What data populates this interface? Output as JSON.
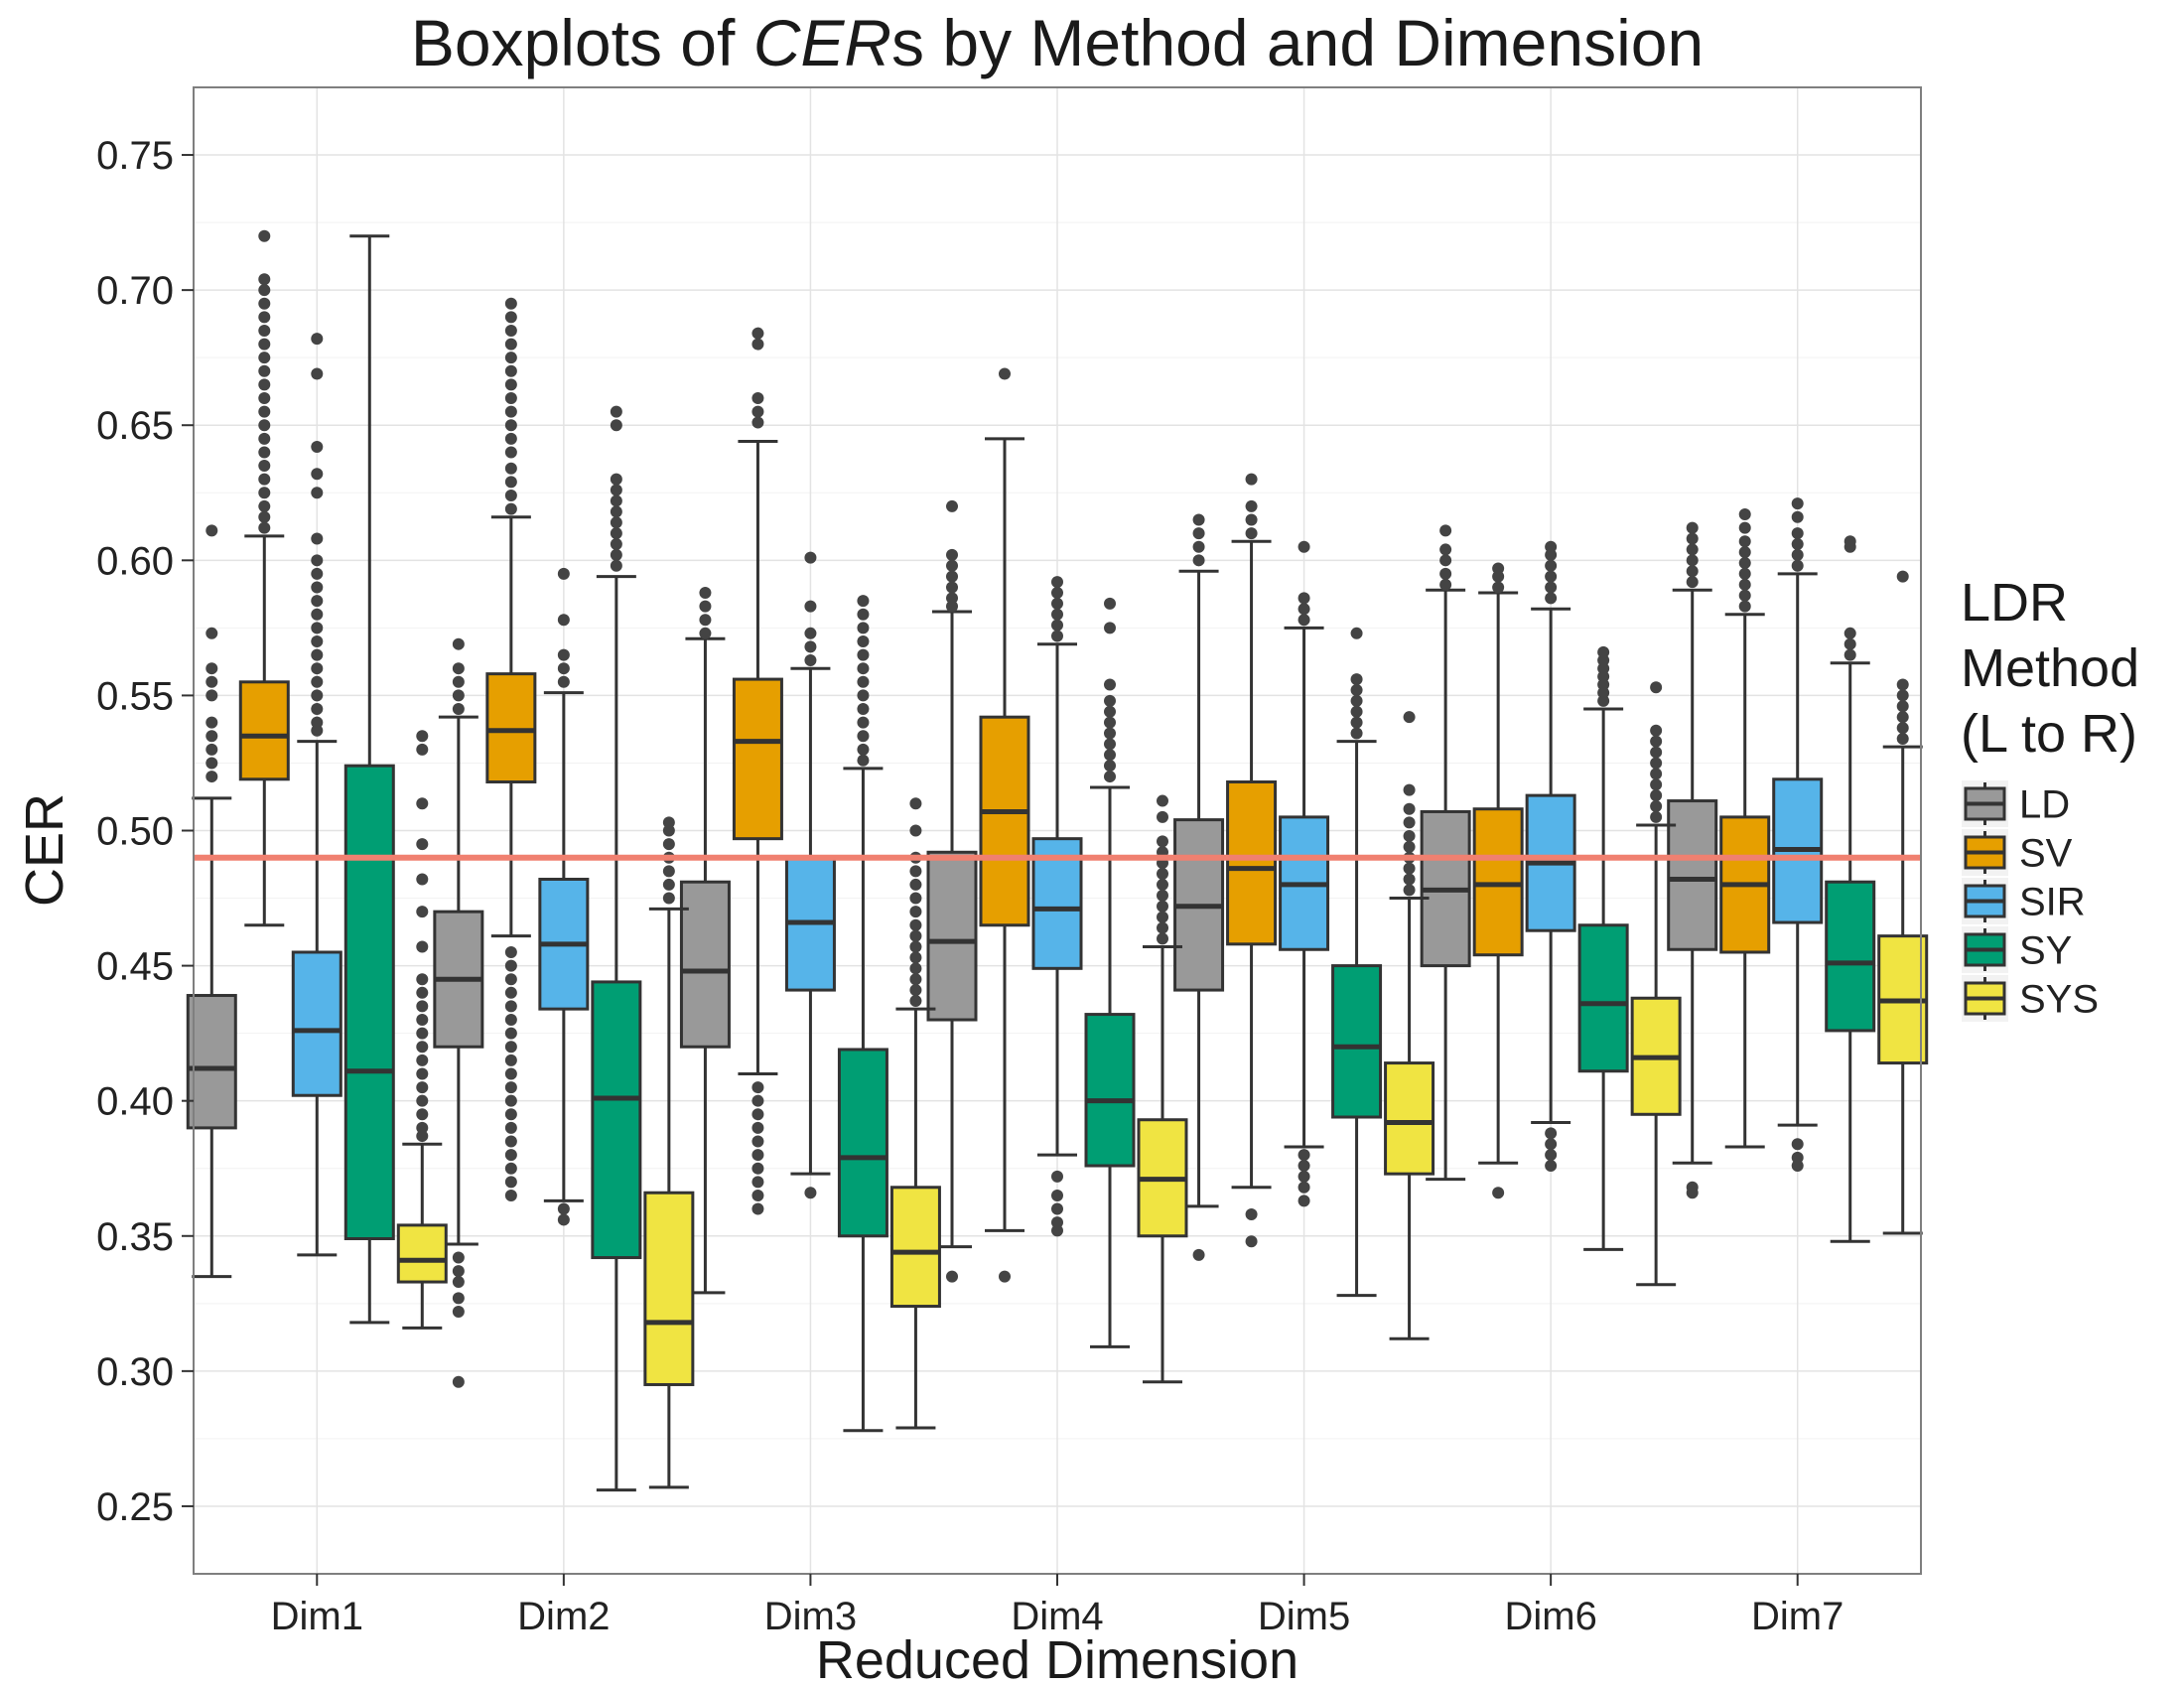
{
  "chart_data": {
    "type": "boxplot",
    "title_prefix": "Boxplots of ",
    "title_italic": "CER",
    "title_suffix": "s by Method and Dimension",
    "xlabel": "Reduced Dimension",
    "ylabel": "CER",
    "ylim": [
      0.225,
      0.775
    ],
    "yticks": [
      "0.25",
      "0.30",
      "0.35",
      "0.40",
      "0.45",
      "0.50",
      "0.55",
      "0.60",
      "0.65",
      "0.70",
      "0.75"
    ],
    "categories": [
      "Dim1",
      "Dim2",
      "Dim3",
      "Dim4",
      "Dim5",
      "Dim6",
      "Dim7"
    ],
    "reference_line": {
      "y": 0.49,
      "color": "#f08070"
    },
    "grid": true,
    "legend": {
      "position": "right",
      "title_lines": [
        "LDR",
        "Method",
        "(L to R)"
      ]
    },
    "series": [
      {
        "name": "LD",
        "color": "#999999",
        "boxes": [
          {
            "lo": 0.335,
            "q1": 0.39,
            "med": 0.412,
            "q3": 0.439,
            "hi": 0.512,
            "outliers": [
              0.52,
              0.525,
              0.53,
              0.535,
              0.54,
              0.55,
              0.555,
              0.56,
              0.573,
              0.611
            ]
          },
          {
            "lo": 0.347,
            "q1": 0.42,
            "med": 0.445,
            "q3": 0.47,
            "hi": 0.542,
            "outliers": [
              0.296,
              0.322,
              0.327,
              0.333,
              0.337,
              0.342,
              0.545,
              0.55,
              0.555,
              0.56,
              0.569
            ]
          },
          {
            "lo": 0.329,
            "q1": 0.42,
            "med": 0.448,
            "q3": 0.481,
            "hi": 0.571,
            "outliers": [
              0.573,
              0.578,
              0.583,
              0.588
            ]
          },
          {
            "lo": 0.346,
            "q1": 0.43,
            "med": 0.459,
            "q3": 0.492,
            "hi": 0.581,
            "outliers": [
              0.335,
              0.583,
              0.586,
              0.59,
              0.594,
              0.598,
              0.602,
              0.62
            ]
          },
          {
            "lo": 0.361,
            "q1": 0.441,
            "med": 0.472,
            "q3": 0.504,
            "hi": 0.596,
            "outliers": [
              0.343,
              0.6,
              0.605,
              0.61,
              0.615
            ]
          },
          {
            "lo": 0.371,
            "q1": 0.45,
            "med": 0.478,
            "q3": 0.507,
            "hi": 0.589,
            "outliers": [
              0.591,
              0.595,
              0.6,
              0.604,
              0.611
            ]
          },
          {
            "lo": 0.377,
            "q1": 0.456,
            "med": 0.482,
            "q3": 0.511,
            "hi": 0.589,
            "outliers": [
              0.366,
              0.368,
              0.592,
              0.596,
              0.6,
              0.604,
              0.608,
              0.612
            ]
          }
        ]
      },
      {
        "name": "SV",
        "color": "#e69f00",
        "boxes": [
          {
            "lo": 0.465,
            "q1": 0.519,
            "med": 0.535,
            "q3": 0.555,
            "hi": 0.609,
            "outliers": [
              0.612,
              0.616,
              0.62,
              0.625,
              0.63,
              0.635,
              0.64,
              0.645,
              0.65,
              0.655,
              0.66,
              0.665,
              0.67,
              0.675,
              0.68,
              0.685,
              0.69,
              0.695,
              0.7,
              0.704,
              0.72
            ]
          },
          {
            "lo": 0.461,
            "q1": 0.518,
            "med": 0.537,
            "q3": 0.558,
            "hi": 0.616,
            "outliers": [
              0.365,
              0.37,
              0.375,
              0.38,
              0.385,
              0.39,
              0.395,
              0.4,
              0.405,
              0.41,
              0.415,
              0.42,
              0.425,
              0.43,
              0.435,
              0.44,
              0.445,
              0.45,
              0.455,
              0.619,
              0.624,
              0.629,
              0.634,
              0.64,
              0.645,
              0.65,
              0.655,
              0.66,
              0.665,
              0.67,
              0.675,
              0.68,
              0.685,
              0.69,
              0.695
            ]
          },
          {
            "lo": 0.41,
            "q1": 0.497,
            "med": 0.533,
            "q3": 0.556,
            "hi": 0.644,
            "outliers": [
              0.36,
              0.365,
              0.37,
              0.375,
              0.38,
              0.385,
              0.39,
              0.395,
              0.4,
              0.405,
              0.651,
              0.655,
              0.66,
              0.68,
              0.684
            ]
          },
          {
            "lo": 0.352,
            "q1": 0.465,
            "med": 0.507,
            "q3": 0.542,
            "hi": 0.645,
            "outliers": [
              0.335,
              0.669
            ]
          },
          {
            "lo": 0.368,
            "q1": 0.458,
            "med": 0.486,
            "q3": 0.518,
            "hi": 0.607,
            "outliers": [
              0.348,
              0.358,
              0.61,
              0.615,
              0.62,
              0.63
            ]
          },
          {
            "lo": 0.377,
            "q1": 0.454,
            "med": 0.48,
            "q3": 0.508,
            "hi": 0.588,
            "outliers": [
              0.366,
              0.59,
              0.594,
              0.597
            ]
          },
          {
            "lo": 0.383,
            "q1": 0.455,
            "med": 0.48,
            "q3": 0.505,
            "hi": 0.58,
            "outliers": [
              0.583,
              0.587,
              0.591,
              0.595,
              0.599,
              0.603,
              0.607,
              0.612,
              0.617
            ]
          }
        ]
      },
      {
        "name": "SIR",
        "color": "#56b4e9",
        "boxes": [
          {
            "lo": 0.343,
            "q1": 0.402,
            "med": 0.426,
            "q3": 0.455,
            "hi": 0.533,
            "outliers": [
              0.537,
              0.54,
              0.545,
              0.55,
              0.555,
              0.56,
              0.565,
              0.57,
              0.575,
              0.58,
              0.585,
              0.59,
              0.595,
              0.6,
              0.608,
              0.625,
              0.632,
              0.642,
              0.669,
              0.682
            ]
          },
          {
            "lo": 0.363,
            "q1": 0.434,
            "med": 0.458,
            "q3": 0.482,
            "hi": 0.551,
            "outliers": [
              0.356,
              0.36,
              0.555,
              0.56,
              0.565,
              0.578,
              0.595
            ]
          },
          {
            "lo": 0.373,
            "q1": 0.441,
            "med": 0.466,
            "q3": 0.49,
            "hi": 0.56,
            "outliers": [
              0.366,
              0.563,
              0.568,
              0.573,
              0.583,
              0.601
            ]
          },
          {
            "lo": 0.38,
            "q1": 0.449,
            "med": 0.471,
            "q3": 0.497,
            "hi": 0.569,
            "outliers": [
              0.352,
              0.355,
              0.36,
              0.365,
              0.372,
              0.572,
              0.576,
              0.58,
              0.584,
              0.588,
              0.592
            ]
          },
          {
            "lo": 0.383,
            "q1": 0.456,
            "med": 0.48,
            "q3": 0.505,
            "hi": 0.575,
            "outliers": [
              0.363,
              0.368,
              0.372,
              0.376,
              0.38,
              0.578,
              0.582,
              0.586,
              0.605
            ]
          },
          {
            "lo": 0.392,
            "q1": 0.463,
            "med": 0.488,
            "q3": 0.513,
            "hi": 0.582,
            "outliers": [
              0.376,
              0.38,
              0.384,
              0.388,
              0.586,
              0.59,
              0.594,
              0.598,
              0.602,
              0.605
            ]
          },
          {
            "lo": 0.391,
            "q1": 0.466,
            "med": 0.493,
            "q3": 0.519,
            "hi": 0.595,
            "outliers": [
              0.376,
              0.379,
              0.384,
              0.598,
              0.602,
              0.606,
              0.61,
              0.616,
              0.621
            ]
          }
        ]
      },
      {
        "name": "SY",
        "color": "#009e73",
        "boxes": [
          {
            "lo": 0.318,
            "q1": 0.349,
            "med": 0.411,
            "q3": 0.524,
            "hi": 0.72,
            "outliers": []
          },
          {
            "lo": 0.256,
            "q1": 0.342,
            "med": 0.401,
            "q3": 0.444,
            "hi": 0.594,
            "outliers": [
              0.598,
              0.602,
              0.606,
              0.61,
              0.614,
              0.618,
              0.622,
              0.626,
              0.63,
              0.65,
              0.655
            ]
          },
          {
            "lo": 0.278,
            "q1": 0.35,
            "med": 0.379,
            "q3": 0.419,
            "hi": 0.523,
            "outliers": [
              0.526,
              0.53,
              0.535,
              0.54,
              0.545,
              0.55,
              0.555,
              0.56,
              0.565,
              0.57,
              0.575,
              0.58,
              0.585
            ]
          },
          {
            "lo": 0.309,
            "q1": 0.376,
            "med": 0.4,
            "q3": 0.432,
            "hi": 0.516,
            "outliers": [
              0.52,
              0.524,
              0.528,
              0.532,
              0.536,
              0.54,
              0.544,
              0.548,
              0.554,
              0.575,
              0.584
            ]
          },
          {
            "lo": 0.328,
            "q1": 0.394,
            "med": 0.42,
            "q3": 0.45,
            "hi": 0.533,
            "outliers": [
              0.536,
              0.54,
              0.544,
              0.548,
              0.552,
              0.556,
              0.573
            ]
          },
          {
            "lo": 0.345,
            "q1": 0.411,
            "med": 0.436,
            "q3": 0.465,
            "hi": 0.545,
            "outliers": [
              0.548,
              0.551,
              0.554,
              0.557,
              0.56,
              0.563,
              0.566
            ]
          },
          {
            "lo": 0.348,
            "q1": 0.426,
            "med": 0.451,
            "q3": 0.481,
            "hi": 0.562,
            "outliers": [
              0.565,
              0.569,
              0.573,
              0.605,
              0.607
            ]
          }
        ]
      },
      {
        "name": "SYS",
        "color": "#f0e442",
        "boxes": [
          {
            "lo": 0.316,
            "q1": 0.333,
            "med": 0.341,
            "q3": 0.354,
            "hi": 0.384,
            "outliers": [
              0.387,
              0.39,
              0.395,
              0.4,
              0.405,
              0.41,
              0.415,
              0.42,
              0.425,
              0.43,
              0.435,
              0.44,
              0.445,
              0.457,
              0.47,
              0.482,
              0.495,
              0.51,
              0.53,
              0.535
            ]
          },
          {
            "lo": 0.257,
            "q1": 0.295,
            "med": 0.318,
            "q3": 0.366,
            "hi": 0.471,
            "outliers": [
              0.475,
              0.48,
              0.485,
              0.49,
              0.495,
              0.5,
              0.503
            ]
          },
          {
            "lo": 0.279,
            "q1": 0.324,
            "med": 0.344,
            "q3": 0.368,
            "hi": 0.434,
            "outliers": [
              0.437,
              0.441,
              0.445,
              0.449,
              0.453,
              0.457,
              0.461,
              0.465,
              0.47,
              0.475,
              0.48,
              0.485,
              0.49,
              0.5,
              0.51
            ]
          },
          {
            "lo": 0.296,
            "q1": 0.35,
            "med": 0.371,
            "q3": 0.393,
            "hi": 0.457,
            "outliers": [
              0.46,
              0.464,
              0.468,
              0.472,
              0.476,
              0.48,
              0.484,
              0.488,
              0.492,
              0.496,
              0.505,
              0.511
            ]
          },
          {
            "lo": 0.312,
            "q1": 0.373,
            "med": 0.392,
            "q3": 0.414,
            "hi": 0.475,
            "outliers": [
              0.478,
              0.482,
              0.486,
              0.49,
              0.494,
              0.498,
              0.503,
              0.508,
              0.515,
              0.542
            ]
          },
          {
            "lo": 0.332,
            "q1": 0.395,
            "med": 0.416,
            "q3": 0.438,
            "hi": 0.502,
            "outliers": [
              0.505,
              0.509,
              0.513,
              0.517,
              0.521,
              0.525,
              0.529,
              0.533,
              0.537,
              0.553
            ]
          },
          {
            "lo": 0.351,
            "q1": 0.414,
            "med": 0.437,
            "q3": 0.461,
            "hi": 0.531,
            "outliers": [
              0.534,
              0.538,
              0.542,
              0.546,
              0.55,
              0.554,
              0.594
            ]
          }
        ]
      }
    ]
  }
}
